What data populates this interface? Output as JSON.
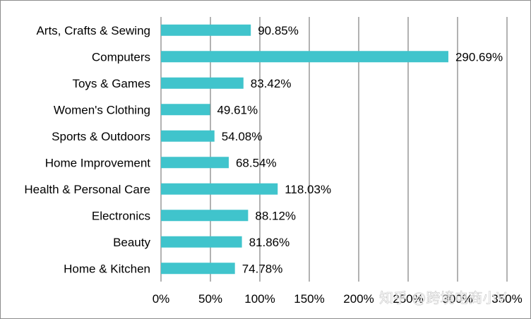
{
  "chart_data": {
    "type": "bar",
    "orientation": "horizontal",
    "categories": [
      "Arts, Crafts & Sewing",
      "Computers",
      "Toys & Games",
      "Women's Clothing",
      "Sports & Outdoors",
      "Home Improvement",
      "Health & Personal Care",
      "Electronics",
      "Beauty",
      "Home & Kitchen"
    ],
    "values": [
      90.85,
      290.69,
      83.42,
      49.61,
      54.08,
      68.54,
      118.03,
      88.12,
      81.86,
      74.78
    ],
    "data_labels": [
      "90.85%",
      "290.69%",
      "83.42%",
      "49.61%",
      "54.08%",
      "68.54%",
      "118.03%",
      "88.12%",
      "81.86%",
      "74.78%"
    ],
    "xlim": [
      0,
      350
    ],
    "x_ticks": [
      "0%",
      "50%",
      "100%",
      "150%",
      "200%",
      "250%",
      "300%",
      "350%"
    ],
    "grid": true,
    "bar_color": "#40C4CC",
    "gridline_color": "#7f7f7f",
    "title": "",
    "xlabel": "",
    "ylabel": ""
  },
  "watermark": "知乎 @跨境电商小V"
}
